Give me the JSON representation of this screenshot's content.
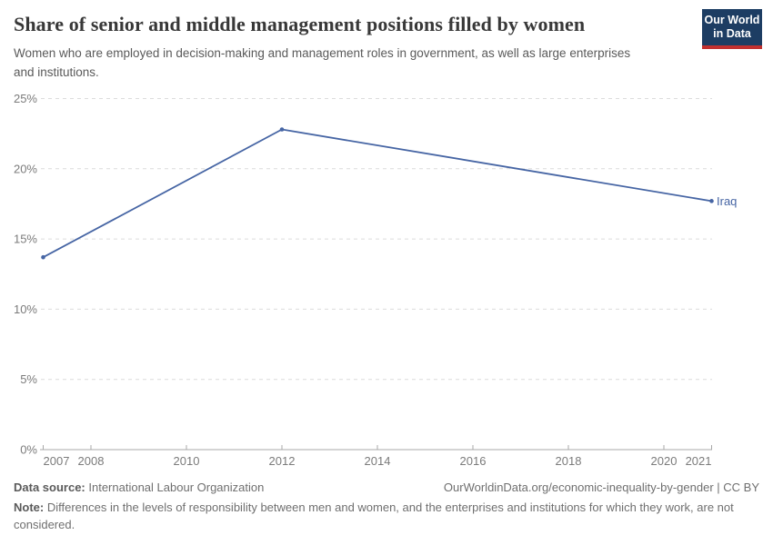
{
  "header": {
    "title": "Share of senior and middle management positions filled by women",
    "subtitle": "Women who are employed in decision-making and management roles in government, as well as large enterprises and institutions."
  },
  "logo": {
    "line1": "Our World",
    "line2": "in Data",
    "bg_color": "#1d3d63",
    "stripe_color": "#c2302f"
  },
  "chart_data": {
    "type": "line",
    "title": "Share of senior and middle management positions filled by women",
    "xlabel": "",
    "ylabel": "",
    "xlim": [
      2007,
      2021
    ],
    "ylim": [
      0,
      25
    ],
    "x_ticks": [
      2007,
      2008,
      2010,
      2012,
      2014,
      2016,
      2018,
      2020,
      2021
    ],
    "x_tick_labels": [
      "2007",
      "2008",
      "2010",
      "2012",
      "2014",
      "2016",
      "2018",
      "2020",
      "2021"
    ],
    "y_ticks": [
      0,
      5,
      10,
      15,
      20,
      25
    ],
    "y_tick_labels": [
      "0%",
      "5%",
      "10%",
      "15%",
      "20%",
      "25%"
    ],
    "grid": "horizontal-dashed",
    "legend": "end-of-line-label",
    "series": [
      {
        "name": "Iraq",
        "color": "#4665A4",
        "points": [
          {
            "year": 2007,
            "value": 13.7
          },
          {
            "year": 2012,
            "value": 22.8
          },
          {
            "year": 2021,
            "value": 17.7
          }
        ]
      }
    ]
  },
  "footer": {
    "data_source_label": "Data source:",
    "data_source_value": "International Labour Organization",
    "link_text": "OurWorldinData.org/economic-inequality-by-gender | CC BY",
    "note_label": "Note:",
    "note_text": "Differences in the levels of responsibility between men and women, and the enterprises and institutions for which they work, are not considered."
  },
  "colors": {
    "line": "#4665A4",
    "grid": "#dcdcdc",
    "axis": "#a8a8a8",
    "tick_text": "#7b7b7b"
  }
}
